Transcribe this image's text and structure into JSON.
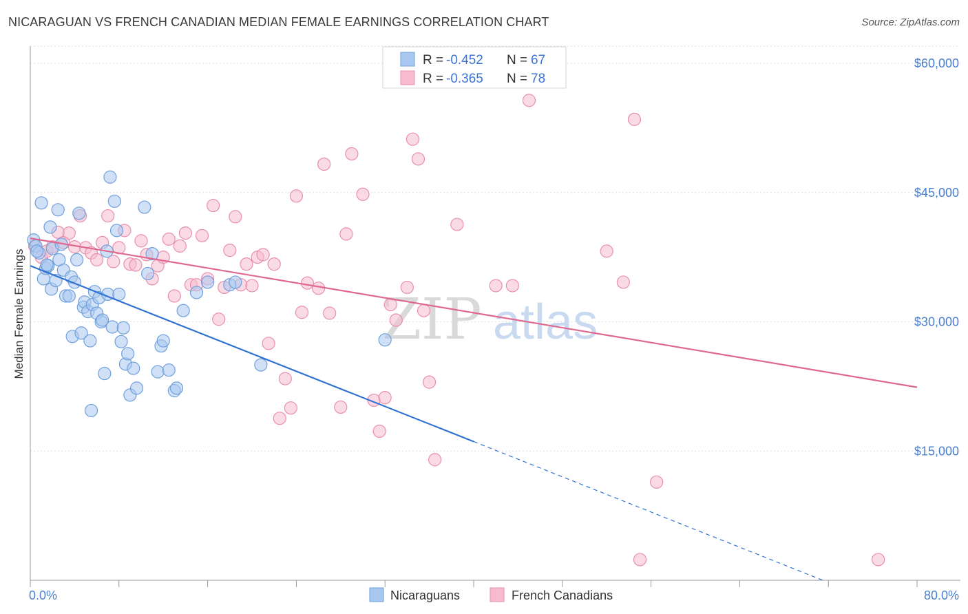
{
  "title": "NICARAGUAN VS FRENCH CANADIAN MEDIAN FEMALE EARNINGS CORRELATION CHART",
  "source": "Source: ZipAtlas.com",
  "watermark": {
    "zip": "ZIP",
    "atlas": "atlas"
  },
  "legend": {
    "r_label": "R =",
    "n_label": "N =",
    "rows": [
      {
        "r": "-0.452",
        "n": "67"
      },
      {
        "r": "-0.365",
        "n": "78"
      }
    ]
  },
  "bottom_legend": [
    "Nicaraguans",
    "French Canadians"
  ],
  "colors": {
    "blue_fill": "#a9c8f0",
    "blue_stroke": "#6f9fdc",
    "blue_line": "#2f72d2",
    "pink_fill": "#f6bccd",
    "pink_stroke": "#e98fac",
    "pink_line": "#e0678f",
    "grid": "#dddddd",
    "tick_text": "#4a7fd0"
  },
  "chart_data": {
    "type": "scatter",
    "ylabel": "Median Female Earnings",
    "xlabel": "",
    "xlim": [
      0,
      80
    ],
    "ylim": [
      0,
      62000
    ],
    "x_tick_labels": [
      "0.0%",
      "80.0%"
    ],
    "y_ticks": [
      15000,
      30000,
      45000,
      60000
    ],
    "y_tick_labels": [
      "$15,000",
      "$30,000",
      "$45,000",
      "$60,000"
    ],
    "grid": true,
    "legend_position": "top-center",
    "series": [
      {
        "name": "Nicaraguans",
        "r": -0.452,
        "n": 67,
        "points": [
          [
            0.3,
            39500
          ],
          [
            0.5,
            38800
          ],
          [
            0.8,
            38000
          ],
          [
            1.0,
            43800
          ],
          [
            1.2,
            35000
          ],
          [
            1.4,
            36200
          ],
          [
            1.6,
            36500
          ],
          [
            1.8,
            41000
          ],
          [
            1.9,
            33800
          ],
          [
            2.0,
            38500
          ],
          [
            2.3,
            34800
          ],
          [
            2.5,
            43000
          ],
          [
            2.6,
            37200
          ],
          [
            2.8,
            39000
          ],
          [
            3.0,
            36000
          ],
          [
            3.2,
            33000
          ],
          [
            3.5,
            33000
          ],
          [
            3.7,
            35200
          ],
          [
            3.8,
            28300
          ],
          [
            4.0,
            34600
          ],
          [
            4.2,
            37200
          ],
          [
            4.4,
            42600
          ],
          [
            4.6,
            28700
          ],
          [
            4.8,
            31700
          ],
          [
            4.9,
            32300
          ],
          [
            5.2,
            31200
          ],
          [
            5.4,
            27800
          ],
          [
            5.6,
            32000
          ],
          [
            5.8,
            33500
          ],
          [
            6.0,
            31000
          ],
          [
            6.2,
            32800
          ],
          [
            6.4,
            30000
          ],
          [
            6.5,
            30200
          ],
          [
            6.7,
            24000
          ],
          [
            6.9,
            38200
          ],
          [
            7.0,
            33200
          ],
          [
            7.2,
            46800
          ],
          [
            7.4,
            29400
          ],
          [
            7.6,
            44000
          ],
          [
            7.8,
            40600
          ],
          [
            8.0,
            33200
          ],
          [
            8.2,
            27700
          ],
          [
            8.4,
            29300
          ],
          [
            8.6,
            25100
          ],
          [
            8.8,
            26300
          ],
          [
            9.0,
            21500
          ],
          [
            9.3,
            24600
          ],
          [
            9.6,
            22300
          ],
          [
            10.3,
            43300
          ],
          [
            10.6,
            35600
          ],
          [
            11.0,
            37900
          ],
          [
            11.5,
            24200
          ],
          [
            11.8,
            27200
          ],
          [
            12.0,
            27800
          ],
          [
            12.5,
            24400
          ],
          [
            13.0,
            22000
          ],
          [
            13.2,
            22300
          ],
          [
            13.8,
            31300
          ],
          [
            15.0,
            33400
          ],
          [
            16.0,
            34600
          ],
          [
            18.0,
            34300
          ],
          [
            18.5,
            34600
          ],
          [
            20.8,
            25000
          ],
          [
            32.0,
            27900
          ],
          [
            5.5,
            19700
          ],
          [
            0.6,
            38200
          ],
          [
            1.5,
            36600
          ]
        ]
      },
      {
        "name": "French Canadians",
        "r": -0.365,
        "n": 78,
        "points": [
          [
            0.4,
            38800
          ],
          [
            1.0,
            37500
          ],
          [
            1.5,
            38200
          ],
          [
            2.0,
            38700
          ],
          [
            2.5,
            40400
          ],
          [
            3.0,
            39200
          ],
          [
            3.5,
            40300
          ],
          [
            4.0,
            38700
          ],
          [
            4.5,
            42300
          ],
          [
            5.0,
            38600
          ],
          [
            5.5,
            38000
          ],
          [
            6.0,
            37200
          ],
          [
            6.5,
            39200
          ],
          [
            7.0,
            42300
          ],
          [
            7.5,
            37000
          ],
          [
            8.0,
            38600
          ],
          [
            8.5,
            40600
          ],
          [
            9.0,
            36700
          ],
          [
            9.5,
            36600
          ],
          [
            10.0,
            39400
          ],
          [
            10.5,
            37800
          ],
          [
            11.0,
            35000
          ],
          [
            11.5,
            36500
          ],
          [
            12.0,
            37500
          ],
          [
            12.5,
            39600
          ],
          [
            13.0,
            33000
          ],
          [
            13.5,
            38800
          ],
          [
            14.0,
            40300
          ],
          [
            14.5,
            34300
          ],
          [
            15.0,
            34300
          ],
          [
            15.5,
            40000
          ],
          [
            16.0,
            35000
          ],
          [
            16.5,
            43500
          ],
          [
            17.0,
            30300
          ],
          [
            17.5,
            34000
          ],
          [
            18.0,
            38300
          ],
          [
            18.5,
            42200
          ],
          [
            19.0,
            34300
          ],
          [
            19.5,
            36700
          ],
          [
            20.0,
            34200
          ],
          [
            20.5,
            37500
          ],
          [
            21.0,
            37800
          ],
          [
            21.5,
            27500
          ],
          [
            22.0,
            36700
          ],
          [
            22.5,
            18800
          ],
          [
            23.0,
            23400
          ],
          [
            23.5,
            20000
          ],
          [
            24.0,
            44600
          ],
          [
            24.5,
            31100
          ],
          [
            25.0,
            34500
          ],
          [
            26.0,
            33900
          ],
          [
            26.5,
            48300
          ],
          [
            27.0,
            31000
          ],
          [
            28.0,
            20100
          ],
          [
            28.5,
            40200
          ],
          [
            29.0,
            49500
          ],
          [
            30.0,
            44800
          ],
          [
            31.0,
            20900
          ],
          [
            31.5,
            17300
          ],
          [
            32.0,
            21200
          ],
          [
            32.5,
            32000
          ],
          [
            33.0,
            30200
          ],
          [
            34.0,
            34000
          ],
          [
            34.5,
            51200
          ],
          [
            35.0,
            48900
          ],
          [
            35.5,
            31300
          ],
          [
            36.0,
            23000
          ],
          [
            36.5,
            14000
          ],
          [
            38.5,
            41300
          ],
          [
            42.0,
            34200
          ],
          [
            43.5,
            34200
          ],
          [
            45.0,
            55700
          ],
          [
            52.0,
            38200
          ],
          [
            53.5,
            34600
          ],
          [
            54.5,
            53500
          ],
          [
            55.0,
            2400
          ],
          [
            56.5,
            11400
          ],
          [
            76.5,
            2400
          ]
        ]
      }
    ],
    "trendlines": [
      {
        "series": "Nicaraguans",
        "x": [
          0,
          40
        ],
        "y": [
          36500,
          16100
        ],
        "dashed_extension_to": [
          71.5,
          0
        ]
      },
      {
        "series": "French Canadians",
        "x": [
          0,
          80
        ],
        "y": [
          39700,
          22400
        ]
      }
    ]
  }
}
